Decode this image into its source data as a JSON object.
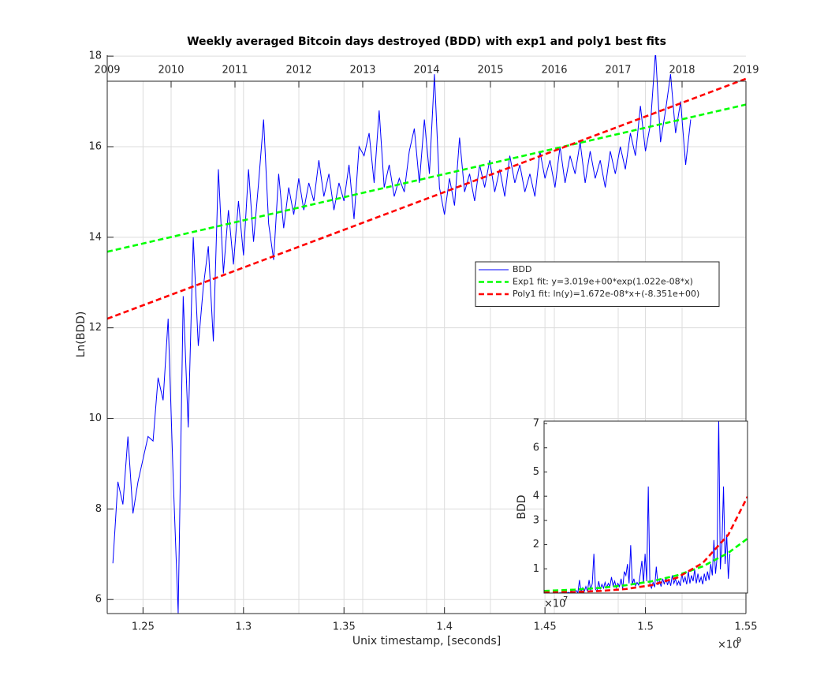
{
  "chart_data": [
    {
      "type": "line",
      "title": "Weekly averaged Bitcoin days destroyed (BDD) with exp1 and poly1 best fits",
      "xlabel": "Unix timestamp, [seconds]",
      "ylabel": "Ln(BDD)",
      "x_multiplier_base": "×10",
      "x_multiplier_exponent": "9",
      "xlim": [
        1.2322,
        1.55
      ],
      "xticks": [
        1.25,
        1.3,
        1.35,
        1.4,
        1.45,
        1.5,
        1.55
      ],
      "ylim": [
        5.69,
        18.02
      ],
      "yticks": [
        6,
        8,
        10,
        12,
        14,
        16,
        18
      ],
      "top_xlim": [
        2009,
        2019
      ],
      "top_xticks": [
        2009,
        2010,
        2011,
        2012,
        2013,
        2014,
        2015,
        2016,
        2017,
        2018,
        2019
      ],
      "grid": true,
      "legend_position": "east",
      "series": [
        {
          "name": "BDD",
          "color": "#0000ff",
          "style": "solid",
          "x": [
            1.235,
            1.2375,
            1.24,
            1.2425,
            1.245,
            1.2475,
            1.25,
            1.2525,
            1.255,
            1.2575,
            1.26,
            1.2625,
            1.265,
            1.2675,
            1.27,
            1.2725,
            1.275,
            1.2775,
            1.28,
            1.2825,
            1.285,
            1.2875,
            1.29,
            1.2925,
            1.295,
            1.2975,
            1.3,
            1.3025,
            1.305,
            1.3075,
            1.31,
            1.3125,
            1.315,
            1.3175,
            1.32,
            1.3225,
            1.325,
            1.3275,
            1.33,
            1.3325,
            1.335,
            1.3375,
            1.34,
            1.3425,
            1.345,
            1.3475,
            1.35,
            1.3525,
            1.355,
            1.3575,
            1.36,
            1.3625,
            1.365,
            1.3675,
            1.37,
            1.3725,
            1.375,
            1.3775,
            1.38,
            1.3825,
            1.385,
            1.3875,
            1.39,
            1.3925,
            1.395,
            1.3975,
            1.4,
            1.4025,
            1.405,
            1.4075,
            1.41,
            1.4125,
            1.415,
            1.4175,
            1.42,
            1.4225,
            1.425,
            1.4275,
            1.43,
            1.4325,
            1.435,
            1.4375,
            1.44,
            1.4425,
            1.445,
            1.4475,
            1.45,
            1.4525,
            1.455,
            1.4575,
            1.46,
            1.4625,
            1.465,
            1.4675,
            1.47,
            1.4725,
            1.475,
            1.4775,
            1.48,
            1.4825,
            1.485,
            1.4875,
            1.49,
            1.4925,
            1.495,
            1.4975,
            1.5,
            1.5025,
            1.505,
            1.5075,
            1.51,
            1.5125,
            1.515,
            1.5175,
            1.52,
            1.5225
          ],
          "values": [
            6.8,
            8.6,
            8.1,
            9.6,
            7.9,
            8.6,
            9.1,
            9.6,
            9.5,
            10.9,
            10.4,
            12.2,
            8.7,
            5.7,
            12.7,
            9.8,
            14.0,
            11.6,
            12.9,
            13.8,
            11.7,
            15.5,
            13.2,
            14.6,
            13.4,
            14.8,
            13.6,
            15.5,
            13.9,
            15.2,
            16.6,
            14.3,
            13.5,
            15.4,
            14.2,
            15.1,
            14.5,
            15.3,
            14.6,
            15.2,
            14.8,
            15.7,
            14.9,
            15.4,
            14.6,
            15.2,
            14.8,
            15.6,
            14.4,
            16.0,
            15.8,
            16.3,
            15.2,
            16.8,
            15.1,
            15.6,
            14.9,
            15.3,
            15.0,
            15.9,
            16.4,
            15.2,
            16.6,
            15.4,
            17.6,
            15.1,
            14.5,
            15.3,
            14.7,
            16.2,
            15.0,
            15.4,
            14.8,
            15.6,
            15.1,
            15.7,
            15.0,
            15.5,
            14.9,
            15.8,
            15.2,
            15.6,
            15.0,
            15.4,
            14.9,
            15.9,
            15.3,
            15.7,
            15.1,
            16.0,
            15.2,
            15.8,
            15.4,
            16.1,
            15.2,
            15.9,
            15.3,
            15.7,
            15.1,
            15.9,
            15.4,
            16.0,
            15.5,
            16.3,
            15.8,
            16.9,
            15.9,
            16.5,
            18.1,
            16.1,
            16.8,
            17.6,
            16.3,
            17.0,
            15.6,
            16.6
          ]
        },
        {
          "name": "Exp1 fit: y=3.019e+00*exp(1.022e-08*x)",
          "color": "#00ff00",
          "style": "dashed",
          "x": [
            1.2322,
            1.55
          ],
          "values": [
            13.68,
            16.93
          ]
        },
        {
          "name": "Poly1 fit: ln(y)=1.672e-08*x+(-8.351e+00)",
          "color": "#ff0000",
          "style": "dashed",
          "x": [
            1.2322,
            1.55
          ],
          "values": [
            12.2,
            17.5
          ]
        }
      ]
    },
    {
      "type": "line",
      "ylabel": "BDD",
      "y_multiplier_base": "×10",
      "y_multiplier_exponent": "7",
      "xlim": [
        1.2322,
        1.55
      ],
      "ylim": [
        0,
        7.1
      ],
      "yticks": [
        1,
        2,
        3,
        4,
        5,
        6,
        7
      ],
      "series": [
        {
          "color": "#0000ff",
          "style": "solid",
          "x": [
            1.235,
            1.2375,
            1.24,
            1.2425,
            1.245,
            1.2475,
            1.25,
            1.2525,
            1.255,
            1.2575,
            1.26,
            1.2625,
            1.265,
            1.2675,
            1.27,
            1.2725,
            1.275,
            1.2775,
            1.28,
            1.2825,
            1.285,
            1.2875,
            1.29,
            1.2925,
            1.295,
            1.2975,
            1.3,
            1.3025,
            1.305,
            1.3075,
            1.31,
            1.3125,
            1.315,
            1.3175,
            1.32,
            1.3225,
            1.325,
            1.3275,
            1.33,
            1.3325,
            1.335,
            1.3375,
            1.34,
            1.3425,
            1.345,
            1.3475,
            1.35,
            1.3525,
            1.355,
            1.3575,
            1.36,
            1.3625,
            1.365,
            1.3675,
            1.37,
            1.3725,
            1.375,
            1.3775,
            1.38,
            1.3825,
            1.385,
            1.3875,
            1.39,
            1.3925,
            1.395,
            1.3975,
            1.4,
            1.4025,
            1.405,
            1.4075,
            1.41,
            1.4125,
            1.415,
            1.4175,
            1.42,
            1.4225,
            1.425,
            1.4275,
            1.43,
            1.4325,
            1.435,
            1.4375,
            1.44,
            1.4425,
            1.445,
            1.4475,
            1.45,
            1.4525,
            1.455,
            1.4575,
            1.46,
            1.4625,
            1.465,
            1.4675,
            1.47,
            1.4725,
            1.475,
            1.4775,
            1.48,
            1.4825,
            1.485,
            1.4875,
            1.49,
            1.4925,
            1.495,
            1.4975,
            1.5,
            1.5025,
            1.505,
            1.5075,
            1.51,
            1.5125,
            1.515,
            1.5175,
            1.52,
            1.5225
          ],
          "values": [
            0,
            0,
            0,
            0,
            0,
            0,
            0,
            0,
            0,
            0.01,
            0,
            0.02,
            0,
            0,
            0.03,
            0,
            0.12,
            0.01,
            0.04,
            0.1,
            0.01,
            0.54,
            0.05,
            0.22,
            0.07,
            0.27,
            0.08,
            0.54,
            0.11,
            0.4,
            1.62,
            0.16,
            0.07,
            0.49,
            0.15,
            0.36,
            0.2,
            0.44,
            0.22,
            0.4,
            0.27,
            0.66,
            0.3,
            0.49,
            0.22,
            0.4,
            0.27,
            0.59,
            0.18,
            0.89,
            0.73,
            1.2,
            0.4,
            1.98,
            0.36,
            0.59,
            0.3,
            0.44,
            0.33,
            0.8,
            1.33,
            0.4,
            1.62,
            0.49,
            4.4,
            0.36,
            0.2,
            0.44,
            0.24,
            1.09,
            0.33,
            0.49,
            0.27,
            0.59,
            0.36,
            0.66,
            0.33,
            0.54,
            0.3,
            0.73,
            0.4,
            0.59,
            0.33,
            0.49,
            0.3,
            0.8,
            0.44,
            0.66,
            0.36,
            0.89,
            0.4,
            0.73,
            0.49,
            0.98,
            0.4,
            0.8,
            0.44,
            0.66,
            0.36,
            0.8,
            0.49,
            0.89,
            0.54,
            1.2,
            0.73,
            2.19,
            0.8,
            1.47,
            7.25,
            0.98,
            1.98,
            4.4,
            1.2,
            2.42,
            0.59,
            1.62
          ]
        },
        {
          "color": "#00ff00",
          "style": "dashed",
          "x": [
            1.2322,
            1.28,
            1.32,
            1.36,
            1.4,
            1.44,
            1.48,
            1.52,
            1.55
          ],
          "values": [
            0.087,
            0.142,
            0.214,
            0.322,
            0.485,
            0.731,
            1.1,
            1.66,
            2.25
          ]
        },
        {
          "color": "#ff0000",
          "style": "dashed",
          "x": [
            1.2322,
            1.28,
            1.32,
            1.36,
            1.4,
            1.44,
            1.48,
            1.52,
            1.55
          ],
          "values": [
            0.02,
            0.044,
            0.086,
            0.167,
            0.326,
            0.635,
            1.24,
            2.41,
            3.98
          ]
        }
      ]
    }
  ]
}
